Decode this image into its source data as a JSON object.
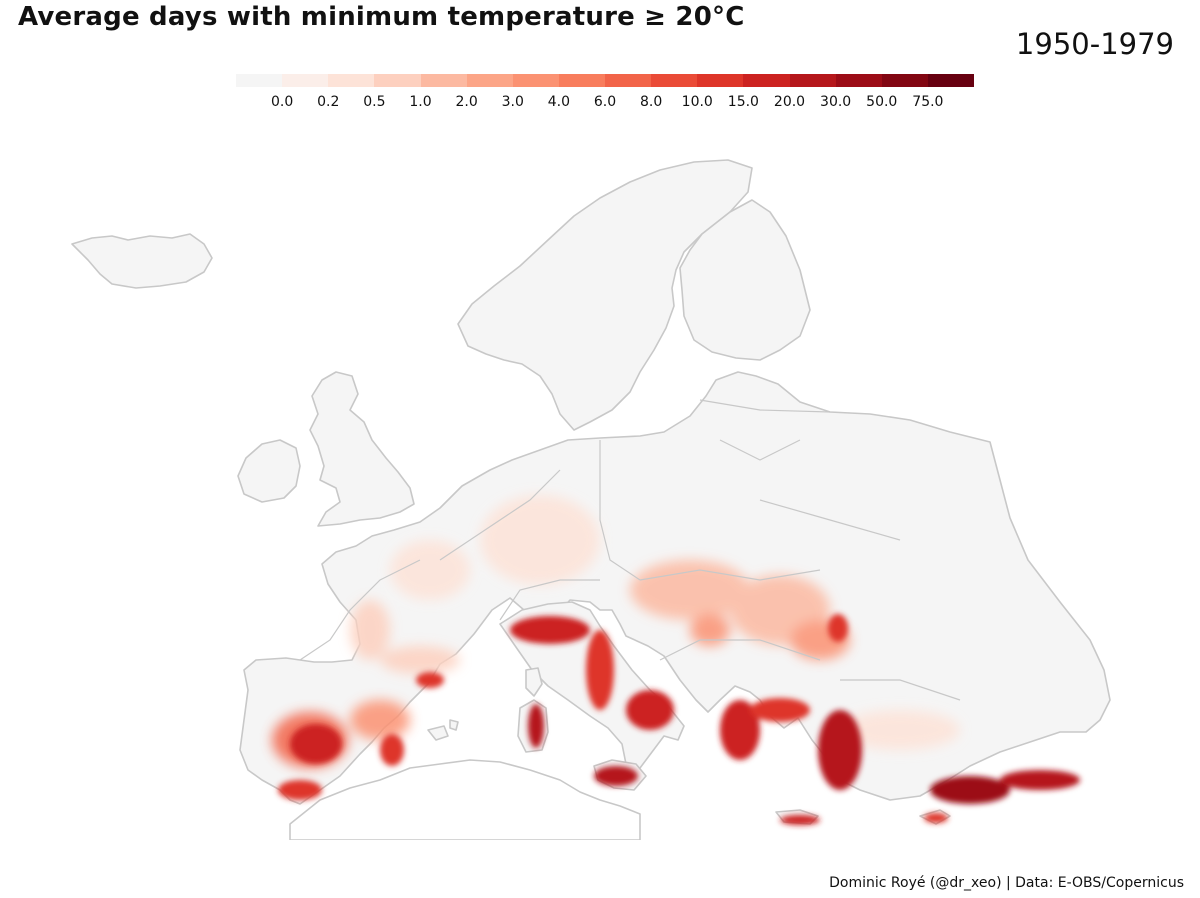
{
  "title": "Average days with minimum temperature ≥ 20°C",
  "period": "1950-1979",
  "legend": {
    "breaks": [
      "0.0",
      "0.2",
      "0.5",
      "1.0",
      "2.0",
      "3.0",
      "4.0",
      "6.0",
      "8.0",
      "10.0",
      "15.0",
      "20.0",
      "30.0",
      "50.0",
      "75.0"
    ],
    "colors": [
      "#f5f5f5",
      "#fbeee9",
      "#fde3d8",
      "#fdd0bf",
      "#fcb9a1",
      "#fca587",
      "#fb9272",
      "#f87d5d",
      "#f26449",
      "#ea4b37",
      "#de3529",
      "#cc2220",
      "#b5171b",
      "#9c0c16",
      "#820612",
      "#670010"
    ]
  },
  "map": {
    "land_color": "#f5f5f5",
    "border_color": "#c8c8c8"
  },
  "credit": "Dominic Royé (@dr_xeo) | Data: E-OBS/Copernicus"
}
